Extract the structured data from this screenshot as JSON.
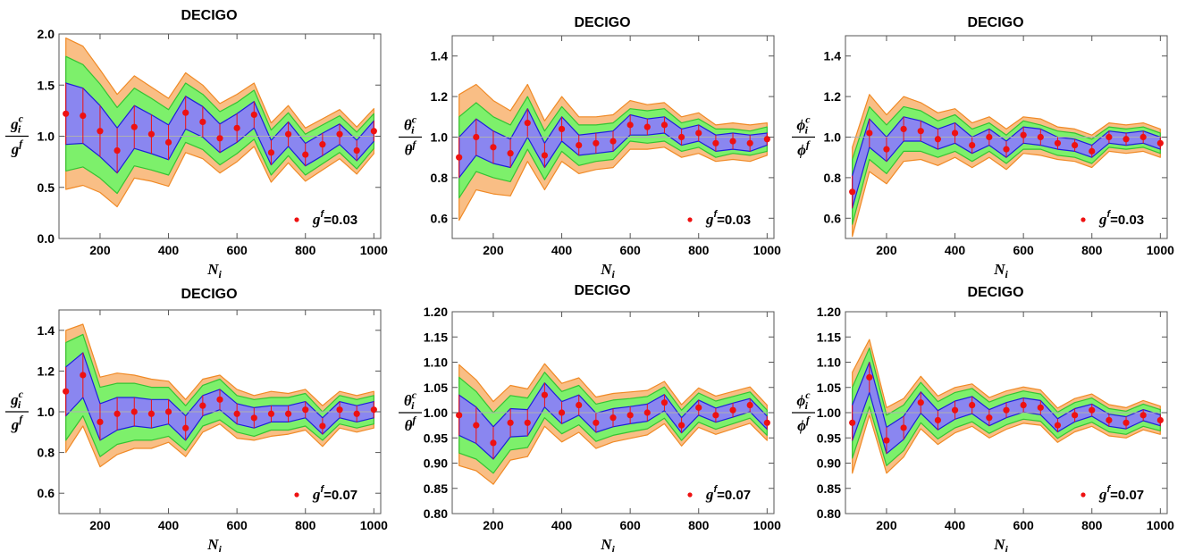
{
  "chart_data": [
    {
      "type": "line",
      "title": "DECIGO",
      "xlabel": {
        "base": "N",
        "sub": "i"
      },
      "ylabel": {
        "num_base": "g",
        "num_sub": "i",
        "num_sup": "c",
        "den_base": "g",
        "den_sup": "f"
      },
      "legend": {
        "base": "g",
        "sup": "f",
        "value": "=0.03",
        "placement": "bottom-right"
      },
      "xlim": [
        80,
        1020
      ],
      "ylim": [
        0,
        2.0
      ],
      "xticks": [
        200,
        400,
        600,
        800,
        1000
      ],
      "xtick_labels": [
        "200",
        "400",
        "600",
        "800",
        "1000"
      ],
      "yticks": [
        0,
        0.5,
        1.0,
        1.5,
        2.0
      ],
      "ytick_labels": [
        "0.0",
        "0.5",
        "1.0",
        "1.5",
        "2.0"
      ],
      "x": [
        100,
        150,
        200,
        250,
        300,
        350,
        400,
        450,
        500,
        550,
        600,
        650,
        700,
        750,
        800,
        850,
        900,
        950,
        1000
      ],
      "series": [
        {
          "name": "",
          "values": [
            1.22,
            1.2,
            1.05,
            0.86,
            1.09,
            1.02,
            0.94,
            1.23,
            1.14,
            0.98,
            1.08,
            1.21,
            0.84,
            1.02,
            0.82,
            0.92,
            1.02,
            0.86,
            1.05
          ]
        }
      ],
      "bands": {
        "one_sigma": [
          0.3,
          0.27,
          0.25,
          0.22,
          0.21,
          0.19,
          0.17,
          0.16,
          0.15,
          0.14,
          0.14,
          0.13,
          0.12,
          0.12,
          0.11,
          0.11,
          0.1,
          0.1,
          0.1
        ],
        "two_sigma": [
          0.56,
          0.5,
          0.46,
          0.42,
          0.38,
          0.35,
          0.32,
          0.29,
          0.27,
          0.26,
          0.25,
          0.24,
          0.22,
          0.21,
          0.2,
          0.19,
          0.18,
          0.18,
          0.17
        ],
        "three_sigma": [
          0.74,
          0.68,
          0.6,
          0.55,
          0.5,
          0.46,
          0.43,
          0.39,
          0.36,
          0.34,
          0.33,
          0.31,
          0.29,
          0.28,
          0.26,
          0.25,
          0.24,
          0.23,
          0.22
        ]
      }
    },
    {
      "type": "line",
      "title": "DECIGO",
      "xlabel": {
        "base": "N",
        "sub": "i"
      },
      "ylabel": {
        "num_base": "θ",
        "num_sub": "i",
        "num_sup": "c",
        "den_base": "θ",
        "den_sup": "f"
      },
      "legend": {
        "base": "g",
        "sup": "f",
        "value": "=0.03",
        "placement": "bottom-right"
      },
      "xlim": [
        80,
        1020
      ],
      "ylim": [
        0.5,
        1.5
      ],
      "xticks": [
        200,
        400,
        600,
        800,
        1000
      ],
      "xtick_labels": [
        "200",
        "400",
        "600",
        "800",
        "1000"
      ],
      "yticks": [
        0.6,
        0.8,
        1.0,
        1.2,
        1.4
      ],
      "ytick_labels": [
        "0.6",
        "0.8",
        "1.0",
        "1.2",
        "1.4"
      ],
      "x": [
        100,
        150,
        200,
        250,
        300,
        350,
        400,
        450,
        500,
        550,
        600,
        650,
        700,
        750,
        800,
        850,
        900,
        950,
        1000
      ],
      "series": [
        {
          "name": "",
          "values": [
            0.9,
            1.0,
            0.95,
            0.92,
            1.07,
            0.91,
            1.04,
            0.96,
            0.97,
            0.98,
            1.06,
            1.05,
            1.06,
            1.0,
            1.02,
            0.97,
            0.98,
            0.97,
            0.99
          ]
        }
      ],
      "bands": {
        "one_sigma": [
          0.1,
          0.09,
          0.08,
          0.07,
          0.07,
          0.06,
          0.06,
          0.05,
          0.05,
          0.05,
          0.05,
          0.04,
          0.04,
          0.04,
          0.04,
          0.04,
          0.04,
          0.04,
          0.03
        ],
        "two_sigma": [
          0.2,
          0.17,
          0.15,
          0.14,
          0.13,
          0.12,
          0.11,
          0.1,
          0.09,
          0.09,
          0.08,
          0.08,
          0.08,
          0.07,
          0.07,
          0.07,
          0.06,
          0.06,
          0.06
        ],
        "three_sigma": [
          0.31,
          0.26,
          0.23,
          0.21,
          0.19,
          0.17,
          0.16,
          0.14,
          0.13,
          0.13,
          0.12,
          0.11,
          0.11,
          0.1,
          0.1,
          0.09,
          0.09,
          0.09,
          0.08
        ]
      }
    },
    {
      "type": "line",
      "title": "DECIGO",
      "xlabel": {
        "base": "N",
        "sub": "i"
      },
      "ylabel": {
        "num_base": "ϕ",
        "num_sub": "i",
        "num_sup": "c",
        "den_base": "ϕ",
        "den_sup": "f"
      },
      "legend": {
        "base": "g",
        "sup": "f",
        "value": "=0.03",
        "placement": "bottom-right"
      },
      "xlim": [
        80,
        1020
      ],
      "ylim": [
        0.5,
        1.5
      ],
      "xticks": [
        200,
        400,
        600,
        800,
        1000
      ],
      "xtick_labels": [
        "200",
        "400",
        "600",
        "800",
        "1000"
      ],
      "yticks": [
        0.6,
        0.8,
        1.0,
        1.2,
        1.4
      ],
      "ytick_labels": [
        "0.6",
        "0.8",
        "1.0",
        "1.2",
        "1.4"
      ],
      "x": [
        100,
        150,
        200,
        250,
        300,
        350,
        400,
        450,
        500,
        550,
        600,
        650,
        700,
        750,
        800,
        850,
        900,
        950,
        1000
      ],
      "series": [
        {
          "name": "",
          "values": [
            0.73,
            1.02,
            0.94,
            1.04,
            1.03,
            0.99,
            1.02,
            0.96,
            1.0,
            0.94,
            1.01,
            1.0,
            0.97,
            0.96,
            0.93,
            1.0,
            0.99,
            1.0,
            0.97
          ]
        }
      ],
      "bands": {
        "one_sigma": [
          0.08,
          0.07,
          0.06,
          0.06,
          0.05,
          0.05,
          0.05,
          0.04,
          0.04,
          0.04,
          0.04,
          0.04,
          0.03,
          0.03,
          0.03,
          0.03,
          0.03,
          0.03,
          0.03
        ],
        "two_sigma": [
          0.16,
          0.13,
          0.12,
          0.11,
          0.1,
          0.09,
          0.09,
          0.08,
          0.07,
          0.07,
          0.07,
          0.06,
          0.06,
          0.06,
          0.06,
          0.05,
          0.05,
          0.05,
          0.05
        ],
        "three_sigma": [
          0.22,
          0.19,
          0.17,
          0.16,
          0.14,
          0.13,
          0.12,
          0.11,
          0.1,
          0.1,
          0.09,
          0.09,
          0.08,
          0.08,
          0.08,
          0.07,
          0.07,
          0.07,
          0.07
        ]
      }
    },
    {
      "type": "line",
      "title": "DECIGO",
      "xlabel": {
        "base": "N",
        "sub": "i"
      },
      "ylabel": {
        "num_base": "g",
        "num_sub": "i",
        "num_sup": "c",
        "den_base": "g",
        "den_sup": "f"
      },
      "legend": {
        "base": "g",
        "sup": "f",
        "value": "=0.07",
        "placement": "bottom-right"
      },
      "xlim": [
        80,
        1020
      ],
      "ylim": [
        0.5,
        1.5
      ],
      "xticks": [
        200,
        400,
        600,
        800,
        1000
      ],
      "xtick_labels": [
        "200",
        "400",
        "600",
        "800",
        "1000"
      ],
      "yticks": [
        0.6,
        0.8,
        1.0,
        1.2,
        1.4
      ],
      "ytick_labels": [
        "0.6",
        "0.8",
        "1.0",
        "1.2",
        "1.4"
      ],
      "x": [
        100,
        150,
        200,
        250,
        300,
        350,
        400,
        450,
        500,
        550,
        600,
        650,
        700,
        750,
        800,
        850,
        900,
        950,
        1000
      ],
      "series": [
        {
          "name": "",
          "values": [
            1.1,
            1.18,
            0.95,
            0.99,
            1.0,
            0.99,
            1.0,
            0.92,
            1.03,
            1.06,
            0.99,
            0.97,
            0.99,
            0.99,
            1.01,
            0.93,
            1.01,
            0.99,
            1.01
          ]
        }
      ],
      "bands": {
        "one_sigma": [
          0.12,
          0.11,
          0.09,
          0.08,
          0.07,
          0.07,
          0.06,
          0.06,
          0.05,
          0.05,
          0.05,
          0.05,
          0.04,
          0.04,
          0.04,
          0.04,
          0.04,
          0.04,
          0.04
        ],
        "two_sigma": [
          0.24,
          0.2,
          0.17,
          0.15,
          0.14,
          0.13,
          0.12,
          0.11,
          0.1,
          0.1,
          0.09,
          0.09,
          0.08,
          0.08,
          0.08,
          0.07,
          0.07,
          0.07,
          0.07
        ],
        "three_sigma": [
          0.3,
          0.25,
          0.22,
          0.2,
          0.18,
          0.17,
          0.15,
          0.14,
          0.13,
          0.12,
          0.12,
          0.11,
          0.11,
          0.1,
          0.1,
          0.1,
          0.09,
          0.09,
          0.09
        ]
      }
    },
    {
      "type": "line",
      "title": "DECIGO",
      "xlabel": {
        "base": "N",
        "sub": "i"
      },
      "ylabel": {
        "num_base": "θ",
        "num_sub": "i",
        "num_sup": "c",
        "den_base": "θ",
        "den_sup": "f"
      },
      "legend": {
        "base": "g",
        "sup": "f",
        "value": "=0.07",
        "placement": "bottom-right"
      },
      "xlim": [
        80,
        1020
      ],
      "ylim": [
        0.8,
        1.2
      ],
      "xticks": [
        200,
        400,
        600,
        800,
        1000
      ],
      "xtick_labels": [
        "200",
        "400",
        "600",
        "800",
        "1000"
      ],
      "yticks": [
        0.8,
        0.85,
        0.9,
        0.95,
        1.0,
        1.05,
        1.1,
        1.15,
        1.2
      ],
      "ytick_labels": [
        "0.80",
        "0.85",
        "0.90",
        "0.95",
        "1.00",
        "1.05",
        "1.10",
        "1.15",
        "1.20"
      ],
      "x": [
        100,
        150,
        200,
        250,
        300,
        350,
        400,
        450,
        500,
        550,
        600,
        650,
        700,
        750,
        800,
        850,
        900,
        950,
        1000
      ],
      "series": [
        {
          "name": "",
          "values": [
            0.995,
            0.975,
            0.94,
            0.98,
            0.98,
            1.035,
            1.0,
            1.015,
            0.98,
            0.99,
            0.995,
            1.0,
            1.02,
            0.975,
            1.01,
            0.995,
            1.005,
            1.015,
            0.98
          ]
        }
      ],
      "bands": {
        "one_sigma": [
          0.04,
          0.036,
          0.032,
          0.028,
          0.026,
          0.024,
          0.022,
          0.02,
          0.019,
          0.018,
          0.017,
          0.017,
          0.016,
          0.015,
          0.015,
          0.014,
          0.014,
          0.013,
          0.013
        ],
        "two_sigma": [
          0.075,
          0.067,
          0.06,
          0.054,
          0.049,
          0.045,
          0.042,
          0.039,
          0.037,
          0.035,
          0.033,
          0.032,
          0.031,
          0.03,
          0.029,
          0.028,
          0.027,
          0.026,
          0.025
        ],
        "three_sigma": [
          0.1,
          0.09,
          0.082,
          0.074,
          0.067,
          0.062,
          0.058,
          0.054,
          0.051,
          0.048,
          0.046,
          0.044,
          0.042,
          0.041,
          0.039,
          0.038,
          0.037,
          0.036,
          0.035
        ]
      }
    },
    {
      "type": "line",
      "title": "DECIGO",
      "xlabel": {
        "base": "N",
        "sub": "i"
      },
      "ylabel": {
        "num_base": "ϕ",
        "num_sub": "i",
        "num_sup": "c",
        "den_base": "ϕ",
        "den_sup": "f"
      },
      "legend": {
        "base": "g",
        "sup": "f",
        "value": "=0.07",
        "placement": "bottom-right"
      },
      "xlim": [
        80,
        1020
      ],
      "ylim": [
        0.8,
        1.2
      ],
      "xticks": [
        200,
        400,
        600,
        800,
        1000
      ],
      "xtick_labels": [
        "200",
        "400",
        "600",
        "800",
        "1000"
      ],
      "yticks": [
        0.8,
        0.85,
        0.9,
        0.95,
        1.0,
        1.05,
        1.1,
        1.15,
        1.2
      ],
      "ytick_labels": [
        "0.80",
        "0.85",
        "0.90",
        "0.95",
        "1.00",
        "1.05",
        "1.10",
        "1.15",
        "1.20"
      ],
      "x": [
        100,
        150,
        200,
        250,
        300,
        350,
        400,
        450,
        500,
        550,
        600,
        650,
        700,
        750,
        800,
        850,
        900,
        950,
        1000
      ],
      "series": [
        {
          "name": "",
          "values": [
            0.98,
            1.07,
            0.945,
            0.97,
            1.02,
            0.985,
            1.005,
            1.015,
            0.99,
            1.005,
            1.015,
            1.01,
            0.975,
            0.995,
            1.005,
            0.985,
            0.98,
            0.995,
            0.985
          ]
        }
      ],
      "bands": {
        "one_sigma": [
          0.035,
          0.03,
          0.026,
          0.023,
          0.021,
          0.019,
          0.018,
          0.017,
          0.016,
          0.015,
          0.014,
          0.014,
          0.013,
          0.013,
          0.012,
          0.012,
          0.012,
          0.011,
          0.011
        ],
        "two_sigma": [
          0.07,
          0.058,
          0.05,
          0.045,
          0.04,
          0.037,
          0.035,
          0.033,
          0.031,
          0.029,
          0.028,
          0.027,
          0.026,
          0.025,
          0.024,
          0.023,
          0.023,
          0.022,
          0.021
        ],
        "three_sigma": [
          0.1,
          0.075,
          0.065,
          0.058,
          0.052,
          0.048,
          0.045,
          0.042,
          0.04,
          0.038,
          0.036,
          0.035,
          0.034,
          0.033,
          0.032,
          0.031,
          0.03,
          0.029,
          0.028
        ]
      }
    }
  ],
  "colors": {
    "three_sigma_fill": "#F9BE85",
    "three_sigma_edge": "#F08A26",
    "two_sigma_fill": "#7DF06B",
    "two_sigma_edge": "#33C433",
    "one_sigma_fill": "#8A86F0",
    "one_sigma_edge": "#1E1EDC",
    "point": "#EE1111",
    "reference_line": "#B0B0B0"
  }
}
